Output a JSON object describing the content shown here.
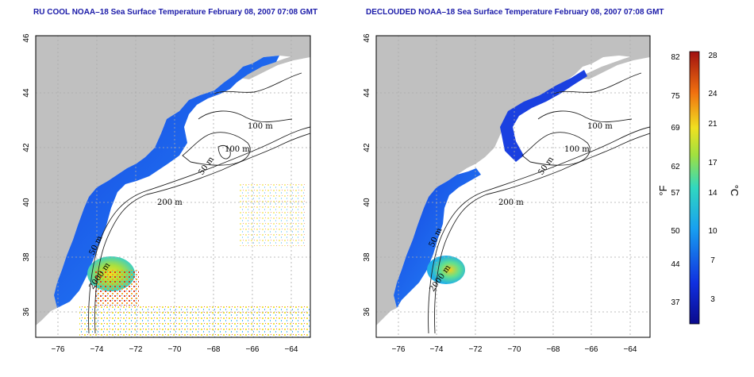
{
  "panels": [
    {
      "title": "RU COOL NOAA–18 Sea Surface Temperature February 08, 2007 07:08 GMT",
      "contours": [
        "100 m",
        "100 m",
        "50 m",
        "200 m",
        "50 m",
        "2000 m"
      ]
    },
    {
      "title": "DECLOUDED NOAA–18 Sea Surface Temperature February 08, 2007 07:08 GMT",
      "contours": [
        "100 m",
        "100 m",
        "50 m",
        "200 m",
        "50 m",
        "2000 m"
      ]
    }
  ],
  "axes": {
    "x_ticks": [
      "−76",
      "−74",
      "−72",
      "−70",
      "−68",
      "−66",
      "−64"
    ],
    "y_ticks": [
      "46",
      "44",
      "42",
      "40",
      "38",
      "36"
    ]
  },
  "colorbar": {
    "f_label": "°F",
    "c_label": "°C",
    "f_ticks": [
      "82",
      "75",
      "69",
      "62",
      "57",
      "50",
      "44",
      "37"
    ],
    "c_ticks": [
      "28",
      "24",
      "21",
      "17",
      "14",
      "10",
      "7",
      "3"
    ]
  },
  "colors": {
    "land": "#c0c0c0",
    "cold": "#1a3fd6",
    "warm": "#f2d21c",
    "hot": "#c81a0a"
  }
}
